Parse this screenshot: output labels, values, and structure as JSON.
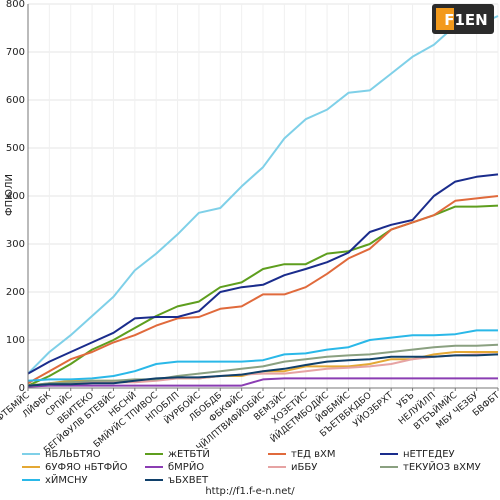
{
  "logo": {
    "text": "F1EN"
  },
  "footer": {
    "url": "http://f1.f-e-n.net/"
  },
  "chart_data": {
    "type": "line",
    "title": "",
    "xlabel": "",
    "ylabel": "ФПЮЛИ",
    "ylim": [
      0,
      800
    ],
    "yticks": [
      0,
      100,
      200,
      300,
      400,
      500,
      600,
      700,
      800
    ],
    "grid": true,
    "legend_position": "bottom",
    "categories": [
      "бФТБМЙС",
      "ЛЙФБК",
      "СРПЙС",
      "ВБИТЕКО",
      "БЕГЙФУЛВ БТЕВЙС",
      "НБСНЙ",
      "БМЙУЙС ТПИВОС",
      "НПОБЛП",
      "ЙУРБОЙС",
      "ЛБОБДБ",
      "ФБКФЙС",
      "ЧЙЛПТВИФЙОБЙС",
      "ВЕМЗЙС",
      "ХОЗЕТЙС",
      "ЙЙДЕТМБОДЙС",
      "ЙФБМЙС",
      "БЪЕТВБКДБО",
      "УЙОЗБРХТ",
      "УБЪ",
      "НЕЛУЙЛП",
      "ВТБЪЙМЙС",
      "МБУ ЧЕЗБУ",
      "БВФБТ"
    ],
    "series": [
      {
        "name": "нБЛЬБТЯО",
        "color": "#7fd0e8",
        "values": [
          30,
          75,
          110,
          150,
          190,
          245,
          280,
          320,
          365,
          375,
          420,
          460,
          520,
          560,
          580,
          615,
          620,
          655,
          690,
          715,
          755,
          755,
          775
        ]
      },
      {
        "name": "жЕТБТЙ",
        "color": "#5e9e1e",
        "values": [
          5,
          25,
          50,
          80,
          100,
          125,
          150,
          170,
          180,
          210,
          220,
          248,
          258,
          258,
          280,
          285,
          300,
          330,
          345,
          360,
          378,
          378,
          380
        ]
      },
      {
        "name": "тЕД вХМ",
        "color": "#e06a3c",
        "values": [
          10,
          35,
          60,
          75,
          95,
          110,
          130,
          145,
          148,
          165,
          170,
          195,
          195,
          210,
          238,
          270,
          290,
          330,
          345,
          360,
          390,
          395,
          400
        ]
      },
      {
        "name": "нЕТГЕДЕУ",
        "color": "#1a2c8c",
        "values": [
          30,
          55,
          75,
          95,
          115,
          145,
          148,
          148,
          160,
          200,
          210,
          215,
          235,
          248,
          262,
          282,
          325,
          340,
          350,
          400,
          430,
          440,
          445
        ]
      },
      {
        "name": "6УФЯО нБТФЙО",
        "color": "#e4a834",
        "values": [
          5,
          10,
          15,
          15,
          15,
          15,
          18,
          20,
          20,
          25,
          25,
          35,
          35,
          45,
          45,
          45,
          50,
          60,
          60,
          70,
          75,
          75,
          75
        ]
      },
      {
        "name": "бМРЙО",
        "color": "#8b3db3",
        "values": [
          3,
          5,
          5,
          5,
          5,
          5,
          5,
          5,
          5,
          5,
          5,
          18,
          20,
          20,
          20,
          20,
          20,
          20,
          20,
          20,
          20,
          20,
          20
        ]
      },
      {
        "name": "иББУ",
        "color": "#e6a3a3",
        "values": [
          5,
          8,
          10,
          12,
          12,
          12,
          15,
          20,
          20,
          25,
          28,
          30,
          30,
          35,
          40,
          42,
          45,
          50,
          60,
          65,
          68,
          70,
          70
        ]
      },
      {
        "name": "тЕКУЙОЗ вХМУ",
        "color": "#8aa080",
        "values": [
          5,
          10,
          12,
          15,
          15,
          18,
          18,
          25,
          30,
          35,
          40,
          45,
          55,
          60,
          65,
          68,
          70,
          75,
          80,
          85,
          88,
          88,
          90
        ]
      },
      {
        "name": "хЙМСНУ",
        "color": "#2ab8e8",
        "values": [
          15,
          18,
          18,
          20,
          25,
          35,
          50,
          55,
          55,
          55,
          55,
          58,
          70,
          72,
          80,
          85,
          100,
          105,
          110,
          110,
          112,
          120,
          120
        ]
      },
      {
        "name": "ъБХВЕТ",
        "color": "#10406a",
        "values": [
          5,
          8,
          8,
          10,
          10,
          15,
          20,
          22,
          22,
          25,
          28,
          35,
          40,
          48,
          55,
          58,
          60,
          65,
          65,
          65,
          68,
          68,
          70
        ]
      }
    ]
  }
}
